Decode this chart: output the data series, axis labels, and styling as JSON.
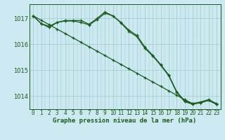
{
  "title": "Graphe pression niveau de la mer (hPa)",
  "background_color": "#cce8f0",
  "grid_color": "#99cccc",
  "line_color": "#1a5c1a",
  "hours": [
    0,
    1,
    2,
    3,
    4,
    5,
    6,
    7,
    8,
    9,
    10,
    11,
    12,
    13,
    14,
    15,
    16,
    17,
    18,
    19,
    20,
    21,
    22,
    23
  ],
  "s1": [
    1017.1,
    1016.8,
    1016.7,
    1016.85,
    1016.9,
    1016.9,
    1016.85,
    1016.75,
    1016.95,
    1017.2,
    1017.1,
    1016.85,
    1016.55,
    1016.35,
    1015.9,
    1015.58,
    1015.22,
    1014.82,
    1014.18,
    1013.82,
    1013.72,
    1013.78,
    1013.87,
    1013.72
  ],
  "s2": [
    1017.1,
    1016.8,
    1016.65,
    1016.85,
    1016.92,
    1016.92,
    1016.92,
    1016.78,
    1017.0,
    1017.25,
    1017.1,
    1016.83,
    1016.5,
    1016.3,
    1015.85,
    1015.55,
    1015.19,
    1014.79,
    1014.15,
    1013.79,
    1013.69,
    1013.75,
    1013.84,
    1013.69
  ],
  "s3": [
    1017.1,
    1016.93,
    1016.76,
    1016.59,
    1016.42,
    1016.25,
    1016.08,
    1015.91,
    1015.74,
    1015.57,
    1015.4,
    1015.23,
    1015.06,
    1014.89,
    1014.72,
    1014.55,
    1014.38,
    1014.21,
    1014.04,
    1013.87,
    1013.72,
    1013.75,
    1013.84,
    1013.69
  ],
  "ylim": [
    1013.5,
    1017.55
  ],
  "yticks": [
    1014,
    1015,
    1016,
    1017
  ],
  "title_fontsize": 6.5,
  "tick_fontsize": 5.5
}
